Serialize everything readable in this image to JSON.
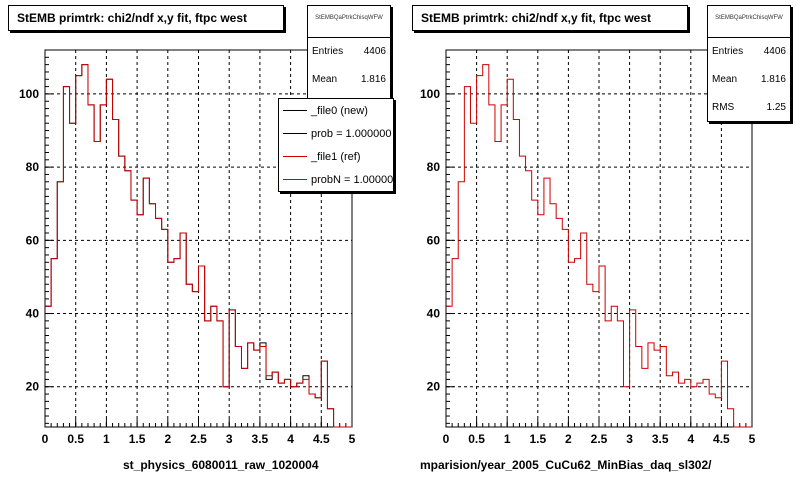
{
  "chart_data": [
    {
      "type": "bar",
      "title": "StEMB primtrk: chi2/ndf x,y fit, ftpc west",
      "xlabel": "st_physics_6080011_raw_1020004",
      "ylabel": "",
      "xlim": [
        0,
        5
      ],
      "ylim": [
        9,
        112
      ],
      "yticks": [
        20,
        40,
        60,
        80,
        100
      ],
      "xticks": [
        0,
        0.5,
        1,
        1.5,
        2,
        2.5,
        3,
        3.5,
        4,
        4.5,
        5
      ],
      "xtick_labels": [
        "0",
        "0.5",
        "1",
        "1.5",
        "2",
        "2.5",
        "3",
        "3.5",
        "4",
        "4.5",
        "5"
      ],
      "ytick_labels": [
        "20",
        "40",
        "60",
        "80",
        "100"
      ],
      "grid": true,
      "bin_width": 0.1,
      "stats": {
        "name": "StEMBQaPtrkChisqWFW",
        "entries": "4406",
        "mean": "1.816"
      },
      "legend": [
        {
          "label": "_file0 (new)",
          "color": "#000000"
        },
        {
          "label": "prob = 1.000000",
          "color": "#000000"
        },
        {
          "label": "_file1 (ref)",
          "color": "#cc0000"
        },
        {
          "label": "probN = 1.000000",
          "color": "#cc0000"
        }
      ],
      "series": [
        {
          "name": "_file0 (new)",
          "color": "#000000",
          "values": [
            42,
            55,
            76,
            102,
            92,
            105,
            108,
            97,
            87,
            97,
            104,
            93,
            83,
            79,
            71,
            67,
            77,
            70,
            66,
            63,
            54,
            55,
            62,
            48,
            46,
            53,
            38,
            42,
            38,
            20,
            41,
            31,
            25,
            32,
            30,
            32,
            22,
            24,
            21,
            22,
            20,
            21,
            23,
            18,
            17,
            27,
            14,
            0,
            0,
            0
          ]
        },
        {
          "name": "_file1 (ref)",
          "color": "#cc0000",
          "values": [
            42,
            55,
            76,
            102,
            92,
            105,
            108,
            97,
            87,
            97,
            104,
            93,
            83,
            79,
            71,
            67,
            77,
            70,
            66,
            63,
            54,
            55,
            62,
            48,
            46,
            53,
            38,
            42,
            38,
            20,
            41,
            31,
            25,
            32,
            30,
            31,
            23,
            24,
            21,
            22,
            20,
            21,
            22,
            18,
            17,
            27,
            14,
            0,
            0,
            0
          ]
        }
      ]
    },
    {
      "type": "bar",
      "title": "StEMB primtrk: chi2/ndf x,y fit, ftpc west",
      "xlabel": "mparision/year_2005_CuCu62_MinBias_daq_sl302/",
      "ylabel": "",
      "xlim": [
        0,
        5
      ],
      "ylim": [
        9,
        112
      ],
      "yticks": [
        20,
        40,
        60,
        80,
        100
      ],
      "xticks": [
        0,
        0.5,
        1,
        1.5,
        2,
        2.5,
        3,
        3.5,
        4,
        4.5,
        5
      ],
      "xtick_labels": [
        "0",
        "0.5",
        "1",
        "1.5",
        "2",
        "2.5",
        "3",
        "3.5",
        "4",
        "4.5",
        "5"
      ],
      "ytick_labels": [
        "20",
        "40",
        "60",
        "80",
        "100"
      ],
      "grid": true,
      "bin_width": 0.1,
      "stats": {
        "name": "StEMBQaPtrkChisqWFW",
        "entries": "4406",
        "mean": "1.816",
        "rms": "1.25"
      },
      "series": [
        {
          "name": "_file1 (ref)",
          "color": "#cc0000",
          "values": [
            42,
            55,
            76,
            102,
            92,
            105,
            108,
            97,
            87,
            97,
            104,
            93,
            83,
            79,
            71,
            67,
            77,
            70,
            66,
            63,
            54,
            55,
            62,
            48,
            46,
            53,
            38,
            42,
            38,
            20,
            41,
            31,
            25,
            32,
            30,
            31,
            23,
            24,
            21,
            22,
            20,
            21,
            22,
            18,
            17,
            27,
            14,
            0,
            0,
            0
          ]
        }
      ]
    }
  ],
  "labels": {
    "entries": "Entries",
    "mean": "Mean",
    "rms": "RMS"
  }
}
